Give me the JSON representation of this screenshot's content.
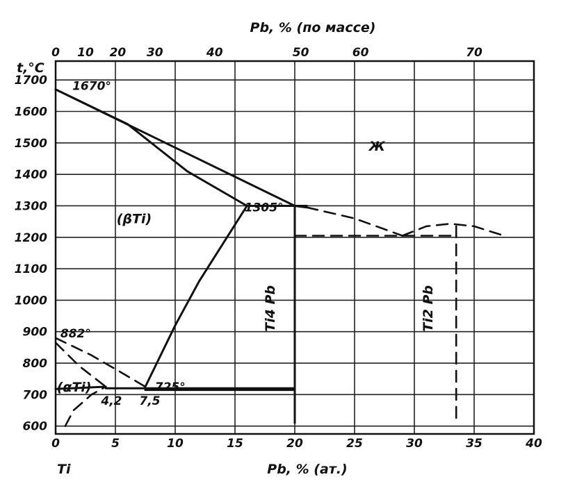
{
  "chart_data": {
    "type": "line",
    "xlabel_bottom": "Pb, % (ат.)",
    "xlabel_top": "Pb, % (по массе)",
    "ylabel": "t,°C",
    "xlim": [
      0,
      40
    ],
    "ylim": [
      575,
      1760
    ],
    "x_ticks": [
      "0",
      "5",
      "10",
      "15",
      "20",
      "25",
      "30",
      "35",
      "40"
    ],
    "x_tick_values": [
      0,
      5,
      10,
      15,
      20,
      25,
      30,
      35,
      40
    ],
    "x_top_ticks": [
      "0",
      "10",
      "20",
      "30",
      "40",
      "50",
      "60",
      "70"
    ],
    "x_top_tick_values": [
      0,
      2.5,
      5.2,
      8.3,
      13.3,
      20.5,
      25.5,
      35
    ],
    "y_ticks": [
      "600",
      "700",
      "800",
      "900",
      "1000",
      "1100",
      "1200",
      "1300",
      "1400",
      "1500",
      "1600",
      "1700"
    ],
    "y_tick_values": [
      600,
      700,
      800,
      900,
      1000,
      1100,
      1200,
      1300,
      1400,
      1500,
      1600,
      1700
    ],
    "grid": true,
    "element_label": "Ti",
    "annotations": [
      {
        "text": "1670°",
        "x": 1.4,
        "y": 1668
      },
      {
        "text": "1305°",
        "x": 15.8,
        "y": 1282
      },
      {
        "text": "882°",
        "x": 0.4,
        "y": 882
      },
      {
        "text": "725°",
        "x": 8.3,
        "y": 712
      },
      {
        "text": "4,2",
        "x": 3.8,
        "y": 668
      },
      {
        "text": "7,5",
        "x": 7.0,
        "y": 668
      },
      {
        "text": "(αTi)",
        "x": 0.1,
        "y": 710
      },
      {
        "text": "(βTi)",
        "x": 5.1,
        "y": 1245
      },
      {
        "text": "Ж",
        "x": 26.2,
        "y": 1475
      },
      {
        "text": "Ti4 Pb",
        "x": 18.3,
        "y": 900,
        "vertical": true
      },
      {
        "text": "Ti2 Pb",
        "x": 31.5,
        "y": 900,
        "vertical": true
      }
    ],
    "series": [
      {
        "style": "solid",
        "points": [
          [
            0,
            1670
          ],
          [
            20,
            1300
          ],
          [
            21,
            1295
          ]
        ]
      },
      {
        "style": "solid",
        "points": [
          [
            0,
            1670
          ],
          [
            6,
            1560
          ],
          [
            11,
            1410
          ],
          [
            16,
            1300
          ]
        ]
      },
      {
        "style": "solid",
        "points": [
          [
            16,
            1300
          ],
          [
            21,
            1300
          ]
        ]
      },
      {
        "style": "solid",
        "points": [
          [
            16,
            1300
          ],
          [
            14,
            1180
          ],
          [
            12,
            1060
          ],
          [
            10,
            920
          ],
          [
            7.5,
            725
          ]
        ]
      },
      {
        "style": "solid",
        "points": [
          [
            4.2,
            720
          ],
          [
            20,
            720
          ]
        ]
      },
      {
        "style": "solid",
        "points": [
          [
            7.5,
            715
          ],
          [
            20,
            715
          ]
        ]
      },
      {
        "style": "solid",
        "points": [
          [
            0,
            718
          ],
          [
            4.2,
            725
          ]
        ]
      },
      {
        "style": "solid",
        "points": [
          [
            20,
            1300
          ],
          [
            20,
            610
          ]
        ]
      },
      {
        "style": "dashed",
        "points": [
          [
            21,
            1295
          ],
          [
            25,
            1260
          ],
          [
            29,
            1205
          ]
        ]
      },
      {
        "style": "dashed",
        "points": [
          [
            29,
            1205
          ],
          [
            31,
            1235
          ],
          [
            33,
            1243
          ],
          [
            35,
            1235
          ],
          [
            37.5,
            1205
          ]
        ]
      },
      {
        "style": "dashed",
        "points": [
          [
            20,
            1205
          ],
          [
            33.5,
            1205
          ]
        ]
      },
      {
        "style": "dashed",
        "points": [
          [
            33.5,
            1235
          ],
          [
            33.5,
            610
          ]
        ]
      },
      {
        "style": "dashed",
        "points": [
          [
            0,
            880
          ],
          [
            3,
            825
          ],
          [
            5.5,
            770
          ],
          [
            7.5,
            725
          ]
        ]
      },
      {
        "style": "dashed",
        "points": [
          [
            0,
            865
          ],
          [
            2,
            790
          ],
          [
            4.2,
            725
          ]
        ]
      },
      {
        "style": "dashed",
        "points": [
          [
            0.8,
            600
          ],
          [
            1.5,
            650
          ],
          [
            3,
            700
          ],
          [
            4.2,
            725
          ]
        ]
      }
    ]
  }
}
